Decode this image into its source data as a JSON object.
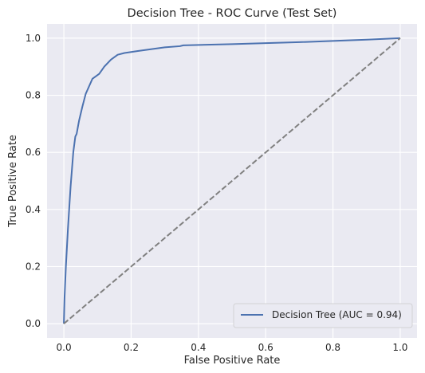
{
  "chart_data": {
    "type": "line",
    "title": "Decision Tree - ROC Curve (Test Set)",
    "xlabel": "False Positive Rate",
    "ylabel": "True Positive Rate",
    "xlim": [
      -0.05,
      1.05
    ],
    "ylim": [
      -0.05,
      1.05
    ],
    "xticks": [
      "0.0",
      "0.2",
      "0.4",
      "0.6",
      "0.8",
      "1.0"
    ],
    "yticks": [
      "0.0",
      "0.2",
      "0.4",
      "0.6",
      "0.8",
      "1.0"
    ],
    "grid": true,
    "legend_position": "lower-right",
    "series": [
      {
        "name": "Decision Tree (AUC = 0.94)",
        "color": "#4c72b0",
        "style": "solid",
        "x": [
          0.0,
          0.002,
          0.006,
          0.012,
          0.02,
          0.028,
          0.034,
          0.038,
          0.045,
          0.055,
          0.065,
          0.085,
          0.105,
          0.12,
          0.14,
          0.16,
          0.18,
          0.22,
          0.3,
          0.345,
          0.355,
          0.5,
          0.7,
          0.9,
          1.0
        ],
        "y": [
          0.0,
          0.09,
          0.2,
          0.33,
          0.48,
          0.6,
          0.655,
          0.665,
          0.71,
          0.76,
          0.805,
          0.858,
          0.875,
          0.9,
          0.925,
          0.942,
          0.948,
          0.955,
          0.968,
          0.972,
          0.975,
          0.979,
          0.986,
          0.995,
          1.0
        ]
      },
      {
        "name": "",
        "color": "#808080",
        "style": "dashed",
        "x": [
          0.0,
          1.0
        ],
        "y": [
          0.0,
          1.0
        ]
      }
    ]
  }
}
